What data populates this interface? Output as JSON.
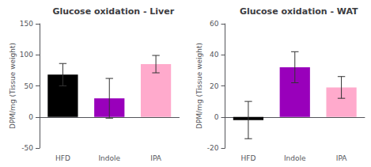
{
  "chart_data": [
    {
      "type": "bar",
      "title": "Glucose oxidation - Liver",
      "categories": [
        "HFD",
        "Indole",
        "IPA"
      ],
      "values": [
        68,
        30,
        85
      ],
      "errors": [
        18,
        32,
        14
      ],
      "colors": [
        "#000000",
        "#9900bb",
        "#ffaacc"
      ],
      "ylabel": "DPM/mg (Tissue weight)",
      "ylim": [
        -50,
        150
      ],
      "yticks": [
        -50,
        0,
        50,
        100,
        150
      ],
      "grid": false
    },
    {
      "type": "bar",
      "title": "Glucose oxidation - WAT",
      "categories": [
        "HFD",
        "Indole",
        "IPA"
      ],
      "values": [
        -2,
        32,
        19
      ],
      "errors": [
        12,
        10,
        7
      ],
      "colors": [
        "#000000",
        "#9900bb",
        "#ffaacc"
      ],
      "ylabel": "DPM/mg (Tissue weight)",
      "ylim": [
        -20,
        60
      ],
      "yticks": [
        -20,
        0,
        20,
        40,
        60
      ],
      "grid": false
    }
  ]
}
